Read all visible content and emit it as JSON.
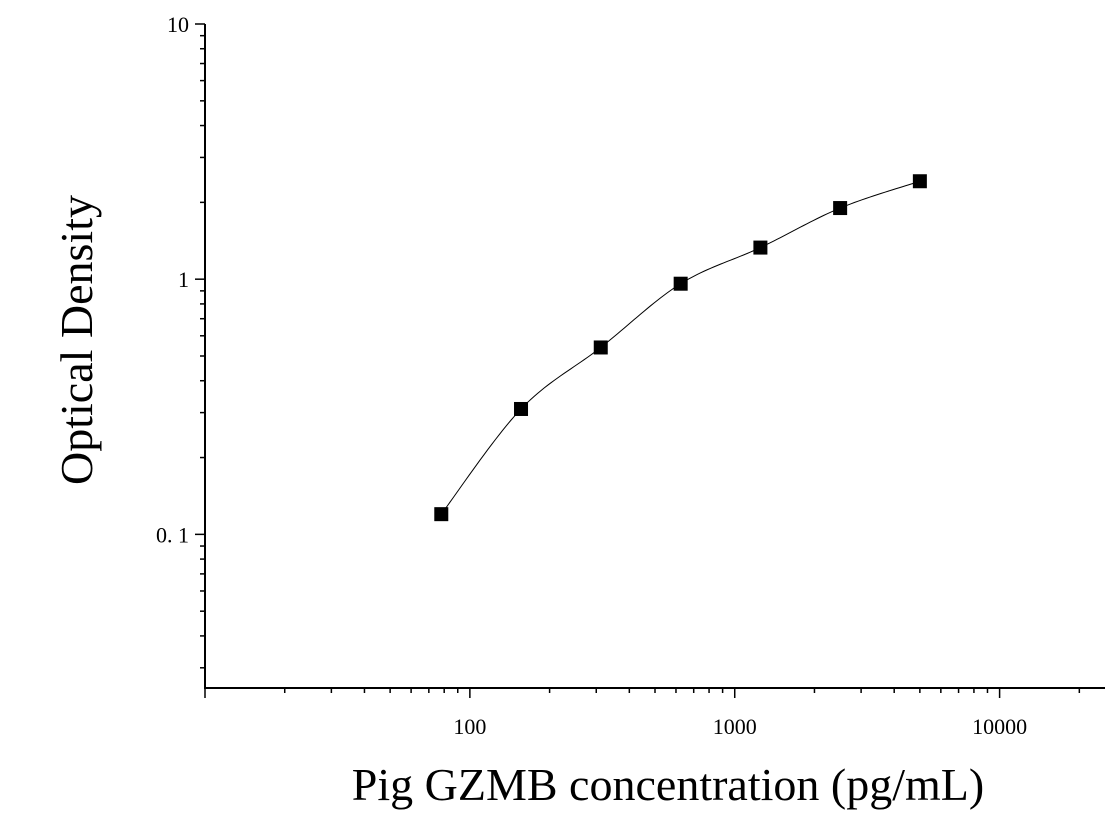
{
  "chart_data": {
    "type": "scatter",
    "title": "",
    "xlabel": "Pig GZMB concentration (pg/mL)",
    "ylabel": "Optical Density",
    "x_scale": "log",
    "y_scale": "log",
    "xlim": [
      10,
      25000
    ],
    "ylim": [
      0.025,
      10
    ],
    "x_ticks": [
      100,
      1000,
      10000
    ],
    "x_tick_labels": [
      "100",
      "1000",
      "10000"
    ],
    "y_ticks": [
      0.1,
      1,
      10
    ],
    "y_tick_labels": [
      "0. 1",
      "1",
      "10"
    ],
    "grid": false,
    "legend": "none",
    "series": [
      {
        "x": [
          78,
          156,
          312,
          625,
          1250,
          2500,
          5000
        ],
        "y": [
          0.12,
          0.31,
          0.54,
          0.96,
          1.33,
          1.9,
          2.42
        ],
        "marker": "square",
        "fit_curve": true
      }
    ],
    "colors": {
      "marker": "#000000",
      "line": "#000000",
      "axis": "#000000"
    }
  }
}
